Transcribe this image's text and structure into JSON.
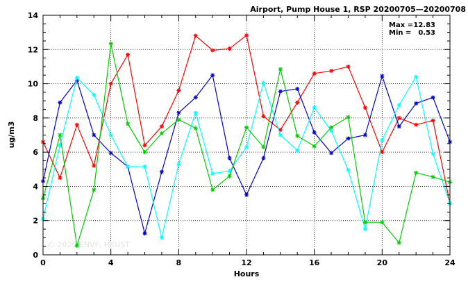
{
  "chart_data": {
    "type": "line",
    "title": "Airport, Pump House 1, RSP 20200705—20200708",
    "xlabel": "Hours",
    "ylabel": "ug/m3",
    "xlim": [
      0,
      24
    ],
    "ylim": [
      0,
      14
    ],
    "xticks": [
      0,
      4,
      8,
      12,
      16,
      20,
      24
    ],
    "yticks": [
      0,
      2,
      4,
      6,
      8,
      10,
      12,
      14
    ],
    "grid": "dotted",
    "stats": {
      "max_label": "Max =",
      "max_value": "12.83",
      "min_label": "Min =",
      "min_value": "0.53"
    },
    "watermark": "© 2020 ENVF, HKUST",
    "x": [
      0,
      1,
      2,
      3,
      4,
      5,
      6,
      7,
      8,
      9,
      10,
      11,
      12,
      13,
      14,
      15,
      16,
      17,
      18,
      19,
      20,
      21,
      22,
      23,
      24
    ],
    "series": [
      {
        "color": "#ff0000",
        "values": [
          6.6,
          4.5,
          7.6,
          5.2,
          10.0,
          11.7,
          6.4,
          7.5,
          9.6,
          12.8,
          11.95,
          12.05,
          12.83,
          8.1,
          7.3,
          8.9,
          10.6,
          10.75,
          11.0,
          8.6,
          6.0,
          8.0,
          7.6,
          7.85,
          3.0
        ]
      },
      {
        "color": "#0000cc",
        "values": [
          4.3,
          8.9,
          10.2,
          7.0,
          5.95,
          5.15,
          1.25,
          4.85,
          8.3,
          9.2,
          10.5,
          5.65,
          3.5,
          5.65,
          9.55,
          9.7,
          7.15,
          5.95,
          6.8,
          7.0,
          10.45,
          7.5,
          8.85,
          9.2,
          6.6
        ]
      },
      {
        "color": "#00ffff",
        "values": [
          2.1,
          6.4,
          10.35,
          9.35,
          7.0,
          5.15,
          5.15,
          1.0,
          5.3,
          8.3,
          4.75,
          4.9,
          6.3,
          10.05,
          7.0,
          6.1,
          8.6,
          7.25,
          4.95,
          1.5,
          6.7,
          8.75,
          10.4,
          5.9,
          3.0
        ]
      },
      {
        "color": "#00cc00",
        "values": [
          3.3,
          7.0,
          0.53,
          3.8,
          12.35,
          7.65,
          6.0,
          7.1,
          7.9,
          7.4,
          3.8,
          4.6,
          7.45,
          6.3,
          10.85,
          6.95,
          6.35,
          7.45,
          8.05,
          1.9,
          1.9,
          0.7,
          4.8,
          4.55,
          4.25
        ]
      }
    ]
  }
}
